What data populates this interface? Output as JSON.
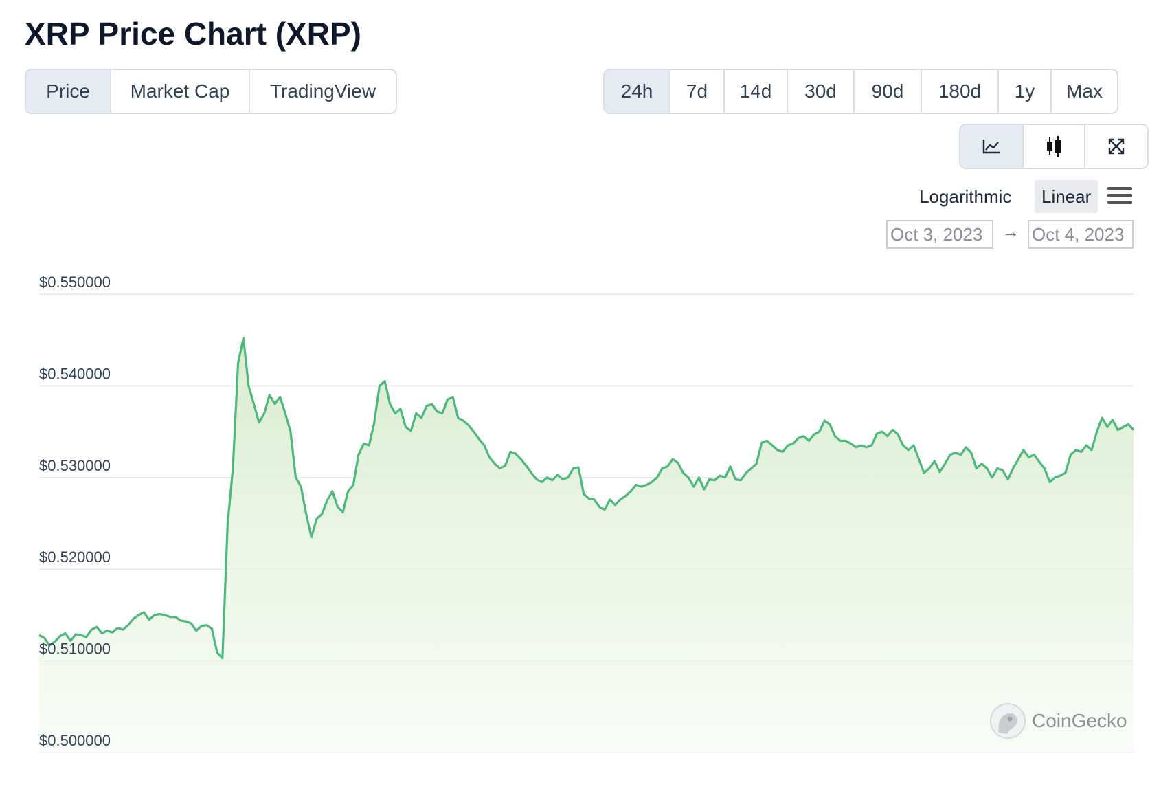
{
  "page": {
    "title": "XRP Price Chart (XRP)"
  },
  "view_tabs": [
    {
      "label": "Price",
      "active": true
    },
    {
      "label": "Market Cap",
      "active": false
    },
    {
      "label": "TradingView",
      "active": false
    }
  ],
  "range_tabs": [
    {
      "label": "24h",
      "active": true
    },
    {
      "label": "7d",
      "active": false
    },
    {
      "label": "14d",
      "active": false
    },
    {
      "label": "30d",
      "active": false
    },
    {
      "label": "90d",
      "active": false
    },
    {
      "label": "180d",
      "active": false
    },
    {
      "label": "1y",
      "active": false
    },
    {
      "label": "Max",
      "active": false
    }
  ],
  "chart_tools": [
    {
      "icon": "line-chart-icon",
      "active": true
    },
    {
      "icon": "candlestick-icon",
      "active": false
    },
    {
      "icon": "fullscreen-icon",
      "active": false
    }
  ],
  "scale": {
    "log_label": "Logarithmic",
    "linear_label": "Linear",
    "selected": "Linear"
  },
  "date_range": {
    "from": "Oct 3, 2023",
    "to": "Oct 4, 2023",
    "arrow": "→"
  },
  "brand": {
    "name": "CoinGecko"
  },
  "colors": {
    "line": "#4cb87a",
    "fill": "#e3f2dc",
    "grid": "#e5e7eb",
    "active_tab": "#e6eaf1"
  },
  "chart_data": {
    "type": "area",
    "title": "",
    "xlabel": "",
    "ylabel": "",
    "ylim": [
      0.5,
      0.55
    ],
    "yticks": [
      0.55,
      0.54,
      0.53,
      0.52,
      0.51,
      0.5
    ],
    "ytick_labels": [
      "$0.550000",
      "$0.540000",
      "$0.530000",
      "$0.520000",
      "$0.510000",
      "$0.500000"
    ],
    "grid": true,
    "legend": "none",
    "series": [
      {
        "values": [
          0.5128,
          0.5125,
          0.5117,
          0.5121,
          0.5127,
          0.513,
          0.5122,
          0.5129,
          0.5128,
          0.5126,
          0.5134,
          0.5137,
          0.513,
          0.5133,
          0.5131,
          0.5136,
          0.5134,
          0.5139,
          0.5146,
          0.515,
          0.5153,
          0.5145,
          0.515,
          0.5151,
          0.515,
          0.5148,
          0.5148,
          0.5144,
          0.5143,
          0.5141,
          0.5133,
          0.5138,
          0.5139,
          0.5135,
          0.5109,
          0.5103,
          0.525,
          0.531,
          0.5425,
          0.5452,
          0.54,
          0.538,
          0.536,
          0.537,
          0.539,
          0.538,
          0.5388,
          0.537,
          0.535,
          0.53,
          0.529,
          0.526,
          0.5235,
          0.5255,
          0.526,
          0.5275,
          0.5285,
          0.5268,
          0.5262,
          0.5285,
          0.5292,
          0.5325,
          0.5337,
          0.5335,
          0.536,
          0.54,
          0.5405,
          0.538,
          0.537,
          0.5375,
          0.5355,
          0.5351,
          0.537,
          0.5365,
          0.5378,
          0.538,
          0.5372,
          0.537,
          0.5385,
          0.5388,
          0.5365,
          0.5362,
          0.5357,
          0.535,
          0.5342,
          0.5335,
          0.5322,
          0.5315,
          0.531,
          0.5313,
          0.5328,
          0.5326,
          0.532,
          0.5313,
          0.5305,
          0.5298,
          0.5295,
          0.53,
          0.5297,
          0.5303,
          0.5298,
          0.53,
          0.531,
          0.5311,
          0.5282,
          0.5277,
          0.5276,
          0.5268,
          0.5265,
          0.5276,
          0.527,
          0.5276,
          0.528,
          0.5285,
          0.5292,
          0.529,
          0.5292,
          0.5295,
          0.53,
          0.531,
          0.5312,
          0.532,
          0.5316,
          0.5305,
          0.53,
          0.529,
          0.53,
          0.5287,
          0.5298,
          0.5297,
          0.5302,
          0.53,
          0.5312,
          0.5298,
          0.5297,
          0.5305,
          0.531,
          0.5315,
          0.5338,
          0.534,
          0.5335,
          0.533,
          0.5328,
          0.5335,
          0.5337,
          0.5343,
          0.5345,
          0.534,
          0.5347,
          0.535,
          0.5362,
          0.5358,
          0.5345,
          0.534,
          0.534,
          0.5337,
          0.5333,
          0.5335,
          0.5333,
          0.5335,
          0.5348,
          0.535,
          0.5345,
          0.5352,
          0.5347,
          0.5335,
          0.533,
          0.5335,
          0.532,
          0.5305,
          0.531,
          0.5318,
          0.5306,
          0.5315,
          0.5325,
          0.5327,
          0.5325,
          0.5333,
          0.5327,
          0.531,
          0.5315,
          0.531,
          0.53,
          0.531,
          0.5308,
          0.5298,
          0.531,
          0.532,
          0.533,
          0.5322,
          0.5325,
          0.5317,
          0.531,
          0.5295,
          0.53,
          0.5302,
          0.5305,
          0.5325,
          0.533,
          0.5328,
          0.5335,
          0.533,
          0.535,
          0.5365,
          0.5355,
          0.5363,
          0.5352,
          0.5355,
          0.5358,
          0.5352
        ]
      }
    ]
  }
}
